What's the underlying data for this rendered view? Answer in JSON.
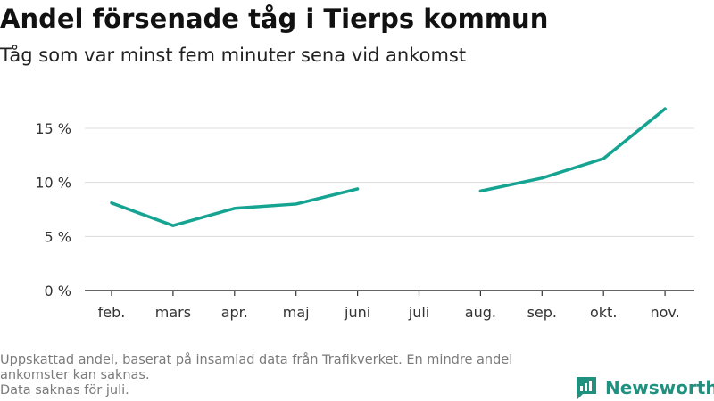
{
  "title": "Andel försenade tåg i Tierps kommun",
  "subtitle": "Tåg som var minst fem minuter sena vid ankomst",
  "footer": {
    "line1": "Uppskattad andel, baserat på insamlad data från Trafikverket. En mindre andel",
    "line2": "ankomster kan saknas.",
    "line3": "Data saknas för juli."
  },
  "logo": {
    "text": "Newsworthy",
    "icon": "bar-chart-speech-bubble-icon",
    "color": "#20907f"
  },
  "chart_data": {
    "type": "line",
    "categories": [
      "feb.",
      "mars",
      "apr.",
      "maj",
      "juni",
      "juli",
      "aug.",
      "sep.",
      "okt.",
      "nov."
    ],
    "series": [
      {
        "values": [
          8.1,
          6.0,
          7.6,
          8.0,
          9.4,
          null,
          9.2,
          10.4,
          12.2,
          16.8
        ]
      }
    ],
    "yticks": [
      0,
      5,
      10,
      15
    ],
    "ytick_labels": [
      "0 %",
      "5 %",
      "10 %",
      "15 %"
    ],
    "ylim": [
      0,
      18
    ],
    "grid": true,
    "line_color": "#15a392"
  }
}
